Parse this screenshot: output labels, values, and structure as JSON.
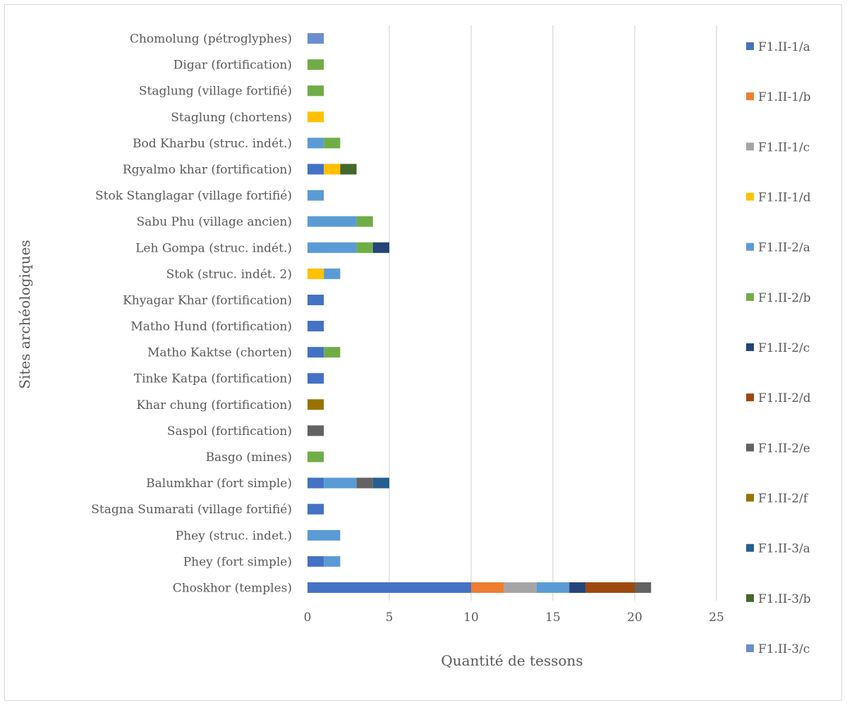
{
  "chart_data": {
    "type": "bar",
    "orientation": "horizontal",
    "stacked": true,
    "xlabel": "Quantité de tessons",
    "ylabel": "Sites archéologiques",
    "xlim": [
      0,
      25
    ],
    "xticks": [
      0,
      5,
      10,
      15,
      20,
      25
    ],
    "grid": "vertical",
    "legend_position": "right",
    "categories": [
      "Choskhor (temples)",
      "Phey (fort simple)",
      "Phey (struc. indet.)",
      "Stagna Sumarati (village fortifié)",
      "Balumkhar (fort simple)",
      "Basgo (mines)",
      "Saspol (fortification)",
      "Khar chung (fortification)",
      "Tinke Katpa (fortification)",
      "Matho Kaktse (chorten)",
      "Matho Hund (fortification)",
      "Khyagar Khar (fortification)",
      "Stok (struc. indét. 2)",
      "Leh Gompa (struc. indét.)",
      "Sabu Phu (village ancien)",
      "Stok Stanglagar (village fortifié)",
      "Rgyalmo khar (fortification)",
      "Bod Kharbu (struc. indét.)",
      "Staglung (chortens)",
      "Staglung (village fortifié)",
      "Digar (fortification)",
      "Chomolung (pétroglyphes)"
    ],
    "series": [
      {
        "name": "F1.II-1/a",
        "color": "#4472c4",
        "values": [
          10,
          1,
          0,
          1,
          1,
          0,
          0,
          0,
          1,
          1,
          1,
          1,
          0,
          0,
          0,
          0,
          1,
          0,
          0,
          0,
          0,
          0
        ]
      },
      {
        "name": "F1.II-1/b",
        "color": "#ed7d31",
        "values": [
          2,
          0,
          0,
          0,
          0,
          0,
          0,
          0,
          0,
          0,
          0,
          0,
          0,
          0,
          0,
          0,
          0,
          0,
          0,
          0,
          0,
          0
        ]
      },
      {
        "name": "F1.II-1/c",
        "color": "#a5a5a5",
        "values": [
          2,
          0,
          0,
          0,
          0,
          0,
          0,
          0,
          0,
          0,
          0,
          0,
          0,
          0,
          0,
          0,
          0,
          0,
          0,
          0,
          0,
          0
        ]
      },
      {
        "name": "F1.II-1/d",
        "color": "#ffc000",
        "values": [
          0,
          0,
          0,
          0,
          0,
          0,
          0,
          0,
          0,
          0,
          0,
          0,
          1,
          0,
          0,
          0,
          1,
          0,
          1,
          0,
          0,
          0
        ]
      },
      {
        "name": "F1.II-2/a",
        "color": "#5b9bd5",
        "values": [
          2,
          1,
          2,
          0,
          2,
          0,
          0,
          0,
          0,
          0,
          0,
          0,
          1,
          3,
          3,
          1,
          0,
          1,
          0,
          0,
          0,
          0
        ]
      },
      {
        "name": "F1.II-2/b",
        "color": "#70ad47",
        "values": [
          0,
          0,
          0,
          0,
          0,
          1,
          0,
          0,
          0,
          1,
          0,
          0,
          0,
          1,
          1,
          0,
          0,
          1,
          0,
          1,
          1,
          0
        ]
      },
      {
        "name": "F1.II-2/c",
        "color": "#264478",
        "values": [
          1,
          0,
          0,
          0,
          0,
          0,
          0,
          0,
          0,
          0,
          0,
          0,
          0,
          1,
          0,
          0,
          0,
          0,
          0,
          0,
          0,
          0
        ]
      },
      {
        "name": "F1.II-2/d",
        "color": "#9e480e",
        "values": [
          3,
          0,
          0,
          0,
          0,
          0,
          0,
          0,
          0,
          0,
          0,
          0,
          0,
          0,
          0,
          0,
          0,
          0,
          0,
          0,
          0,
          0
        ]
      },
      {
        "name": "F1.II-2/e",
        "color": "#636363",
        "values": [
          1,
          0,
          0,
          0,
          1,
          0,
          1,
          0,
          0,
          0,
          0,
          0,
          0,
          0,
          0,
          0,
          0,
          0,
          0,
          0,
          0,
          0
        ]
      },
      {
        "name": "F1.II-2/f",
        "color": "#997300",
        "values": [
          0,
          0,
          0,
          0,
          0,
          0,
          0,
          1,
          0,
          0,
          0,
          0,
          0,
          0,
          0,
          0,
          0,
          0,
          0,
          0,
          0,
          0
        ]
      },
      {
        "name": "F1.II-3/a",
        "color": "#255e91",
        "values": [
          0,
          0,
          0,
          0,
          1,
          0,
          0,
          0,
          0,
          0,
          0,
          0,
          0,
          0,
          0,
          0,
          0,
          0,
          0,
          0,
          0,
          0
        ]
      },
      {
        "name": "F1.II-3/b",
        "color": "#43682b",
        "values": [
          0,
          0,
          0,
          0,
          0,
          0,
          0,
          0,
          0,
          0,
          0,
          0,
          0,
          0,
          0,
          0,
          1,
          0,
          0,
          0,
          0,
          0
        ]
      },
      {
        "name": "F1.II-3/c",
        "color": "#698ed0",
        "values": [
          0,
          0,
          0,
          0,
          0,
          0,
          0,
          0,
          0,
          0,
          0,
          0,
          0,
          0,
          0,
          0,
          0,
          0,
          0,
          0,
          0,
          1
        ]
      }
    ]
  }
}
